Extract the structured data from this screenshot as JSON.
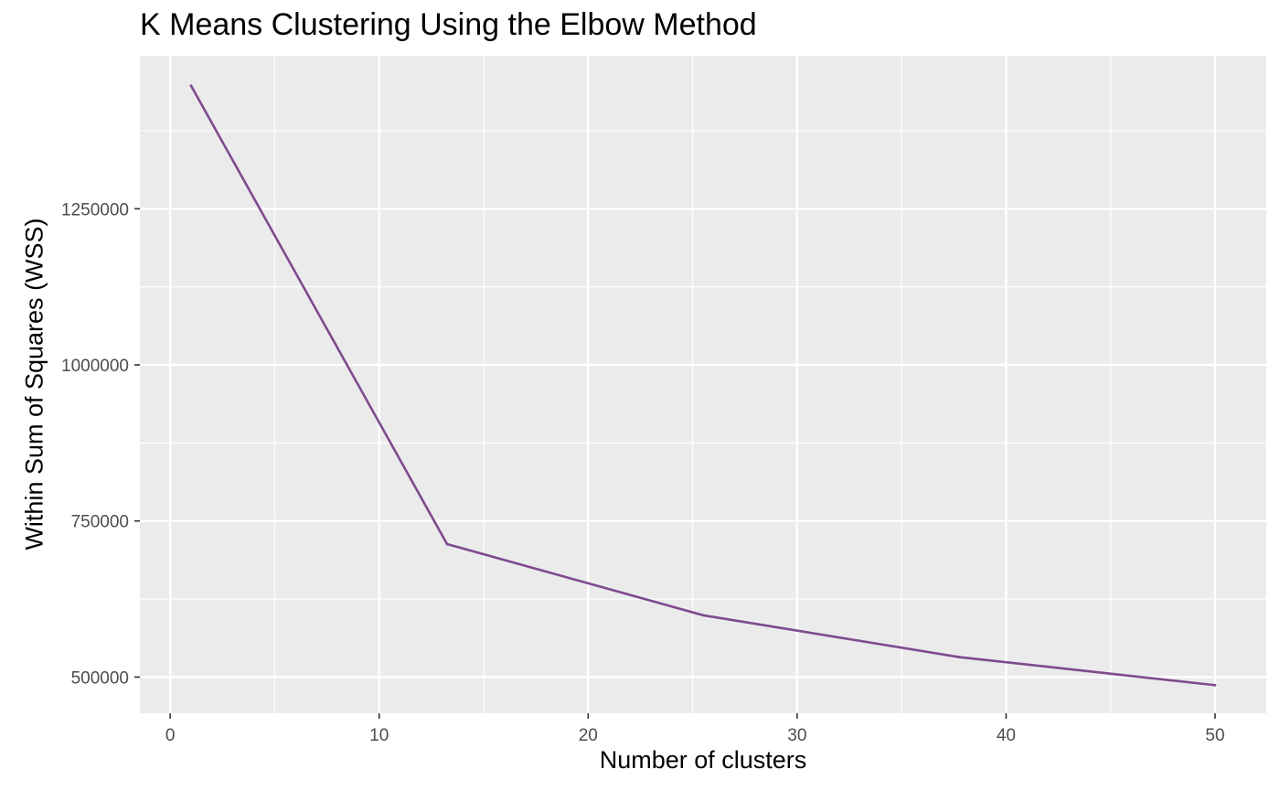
{
  "chart_data": {
    "type": "line",
    "title": "K Means Clustering Using the Elbow Method",
    "xlabel": "Number of clusters",
    "ylabel": "Within Sum of Squares (WSS)",
    "xlim": [
      -1.45,
      52.45
    ],
    "ylim": [
      442000,
      1495000
    ],
    "x_ticks": [
      0,
      10,
      20,
      30,
      40,
      50
    ],
    "y_ticks": [
      500000,
      750000,
      1000000,
      1250000
    ],
    "x_tick_labels": [
      "0",
      "10",
      "20",
      "30",
      "40",
      "50"
    ],
    "y_tick_labels": [
      "500000",
      "750000",
      "1000000",
      "1250000"
    ],
    "grid": true,
    "series": [
      {
        "color": "#7f4a8f",
        "x": [
          1,
          13.25,
          25.5,
          37.75,
          50
        ],
        "y": [
          1447000,
          713000,
          599000,
          532000,
          487000
        ]
      }
    ]
  },
  "colors": {
    "panel_background": "#ebebeb",
    "grid": "#ffffff",
    "line": "#7f4a8f"
  }
}
